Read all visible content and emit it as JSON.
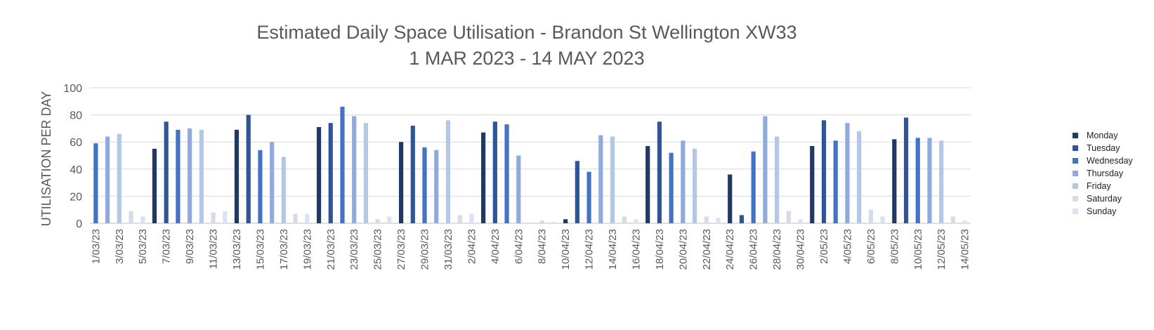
{
  "chart_data": {
    "type": "bar",
    "title": "Estimated Daily Space Utilisation - Brandon St Wellington XW33",
    "subtitle": "1 MAR 2023 - 14 MAY 2023",
    "ylabel": "UTILISATION PER DAY",
    "xlabel": "",
    "ylim": [
      0,
      100
    ],
    "yticks": [
      0,
      20,
      40,
      60,
      80,
      100
    ],
    "grid": true,
    "legend_position": "right",
    "legend": [
      "Monday",
      "Tuesday",
      "Wednesday",
      "Thursday",
      "Friday",
      "Saturday",
      "Sunday"
    ],
    "colors": {
      "Monday": "#203864",
      "Tuesday": "#2F5597",
      "Wednesday": "#4472C4",
      "Thursday": "#8FAADC",
      "Friday": "#B4C7E7",
      "Saturday": "#D6DCE5",
      "Sunday": "#DAE3F3"
    },
    "x_tick_labels": [
      "1/03/23",
      "3/03/23",
      "5/03/23",
      "7/03/23",
      "9/03/23",
      "11/03/23",
      "13/03/23",
      "15/03/23",
      "17/03/23",
      "19/03/23",
      "21/03/23",
      "23/03/23",
      "25/03/23",
      "27/03/23",
      "29/03/23",
      "31/03/23",
      "2/04/23",
      "4/04/23",
      "6/04/23",
      "8/04/23",
      "10/04/23",
      "12/04/23",
      "14/04/23",
      "16/04/23",
      "18/04/23",
      "20/04/23",
      "22/04/23",
      "24/04/23",
      "26/04/23",
      "28/04/23",
      "30/04/23",
      "2/05/23",
      "4/05/23",
      "6/05/23",
      "8/05/23",
      "10/05/23",
      "12/05/23",
      "14/05/23"
    ],
    "points": [
      {
        "date": "1/03/23",
        "day": "Wednesday",
        "value": 59
      },
      {
        "date": "2/03/23",
        "day": "Thursday",
        "value": 64
      },
      {
        "date": "3/03/23",
        "day": "Friday",
        "value": 66
      },
      {
        "date": "4/03/23",
        "day": "Saturday",
        "value": 9
      },
      {
        "date": "5/03/23",
        "day": "Sunday",
        "value": 5
      },
      {
        "date": "6/03/23",
        "day": "Monday",
        "value": 55
      },
      {
        "date": "7/03/23",
        "day": "Tuesday",
        "value": 75
      },
      {
        "date": "8/03/23",
        "day": "Wednesday",
        "value": 69
      },
      {
        "date": "9/03/23",
        "day": "Thursday",
        "value": 70
      },
      {
        "date": "10/03/23",
        "day": "Friday",
        "value": 69
      },
      {
        "date": "11/03/23",
        "day": "Saturday",
        "value": 8
      },
      {
        "date": "12/03/23",
        "day": "Sunday",
        "value": 9
      },
      {
        "date": "13/03/23",
        "day": "Monday",
        "value": 69
      },
      {
        "date": "14/03/23",
        "day": "Tuesday",
        "value": 80
      },
      {
        "date": "15/03/23",
        "day": "Wednesday",
        "value": 54
      },
      {
        "date": "16/03/23",
        "day": "Thursday",
        "value": 60
      },
      {
        "date": "17/03/23",
        "day": "Friday",
        "value": 49
      },
      {
        "date": "18/03/23",
        "day": "Saturday",
        "value": 7
      },
      {
        "date": "19/03/23",
        "day": "Sunday",
        "value": 7
      },
      {
        "date": "20/03/23",
        "day": "Monday",
        "value": 71
      },
      {
        "date": "21/03/23",
        "day": "Tuesday",
        "value": 74
      },
      {
        "date": "22/03/23",
        "day": "Wednesday",
        "value": 86
      },
      {
        "date": "23/03/23",
        "day": "Thursday",
        "value": 79
      },
      {
        "date": "24/03/23",
        "day": "Friday",
        "value": 74
      },
      {
        "date": "25/03/23",
        "day": "Saturday",
        "value": 3
      },
      {
        "date": "26/03/23",
        "day": "Sunday",
        "value": 5
      },
      {
        "date": "27/03/23",
        "day": "Monday",
        "value": 60
      },
      {
        "date": "28/03/23",
        "day": "Tuesday",
        "value": 72
      },
      {
        "date": "29/03/23",
        "day": "Wednesday",
        "value": 56
      },
      {
        "date": "30/03/23",
        "day": "Thursday",
        "value": 54
      },
      {
        "date": "31/03/23",
        "day": "Friday",
        "value": 76
      },
      {
        "date": "1/04/23",
        "day": "Saturday",
        "value": 6
      },
      {
        "date": "2/04/23",
        "day": "Sunday",
        "value": 7
      },
      {
        "date": "3/04/23",
        "day": "Monday",
        "value": 67
      },
      {
        "date": "4/04/23",
        "day": "Tuesday",
        "value": 75
      },
      {
        "date": "5/04/23",
        "day": "Wednesday",
        "value": 73
      },
      {
        "date": "6/04/23",
        "day": "Thursday",
        "value": 50
      },
      {
        "date": "7/04/23",
        "day": "Friday",
        "value": 0
      },
      {
        "date": "8/04/23",
        "day": "Saturday",
        "value": 2
      },
      {
        "date": "9/04/23",
        "day": "Sunday",
        "value": 1
      },
      {
        "date": "10/04/23",
        "day": "Monday",
        "value": 3
      },
      {
        "date": "11/04/23",
        "day": "Tuesday",
        "value": 46
      },
      {
        "date": "12/04/23",
        "day": "Wednesday",
        "value": 38
      },
      {
        "date": "13/04/23",
        "day": "Thursday",
        "value": 65
      },
      {
        "date": "14/04/23",
        "day": "Friday",
        "value": 64
      },
      {
        "date": "15/04/23",
        "day": "Saturday",
        "value": 5
      },
      {
        "date": "16/04/23",
        "day": "Sunday",
        "value": 3
      },
      {
        "date": "17/04/23",
        "day": "Monday",
        "value": 57
      },
      {
        "date": "18/04/23",
        "day": "Tuesday",
        "value": 75
      },
      {
        "date": "19/04/23",
        "day": "Wednesday",
        "value": 52
      },
      {
        "date": "20/04/23",
        "day": "Thursday",
        "value": 61
      },
      {
        "date": "21/04/23",
        "day": "Friday",
        "value": 55
      },
      {
        "date": "22/04/23",
        "day": "Saturday",
        "value": 5
      },
      {
        "date": "23/04/23",
        "day": "Sunday",
        "value": 4
      },
      {
        "date": "24/04/23",
        "day": "Monday",
        "value": 36
      },
      {
        "date": "25/04/23",
        "day": "Tuesday",
        "value": 6
      },
      {
        "date": "26/04/23",
        "day": "Wednesday",
        "value": 53
      },
      {
        "date": "27/04/23",
        "day": "Thursday",
        "value": 79
      },
      {
        "date": "28/04/23",
        "day": "Friday",
        "value": 64
      },
      {
        "date": "29/04/23",
        "day": "Saturday",
        "value": 9
      },
      {
        "date": "30/04/23",
        "day": "Sunday",
        "value": 3
      },
      {
        "date": "1/05/23",
        "day": "Monday",
        "value": 57
      },
      {
        "date": "2/05/23",
        "day": "Tuesday",
        "value": 76
      },
      {
        "date": "3/05/23",
        "day": "Wednesday",
        "value": 61
      },
      {
        "date": "4/05/23",
        "day": "Thursday",
        "value": 74
      },
      {
        "date": "5/05/23",
        "day": "Friday",
        "value": 68
      },
      {
        "date": "6/05/23",
        "day": "Saturday",
        "value": 10
      },
      {
        "date": "7/05/23",
        "day": "Sunday",
        "value": 5
      },
      {
        "date": "8/05/23",
        "day": "Monday",
        "value": 62
      },
      {
        "date": "9/05/23",
        "day": "Tuesday",
        "value": 78
      },
      {
        "date": "10/05/23",
        "day": "Wednesday",
        "value": 63
      },
      {
        "date": "11/05/23",
        "day": "Thursday",
        "value": 63
      },
      {
        "date": "12/05/23",
        "day": "Friday",
        "value": 61
      },
      {
        "date": "13/05/23",
        "day": "Saturday",
        "value": 5
      },
      {
        "date": "14/05/23",
        "day": "Sunday",
        "value": 2
      }
    ]
  }
}
